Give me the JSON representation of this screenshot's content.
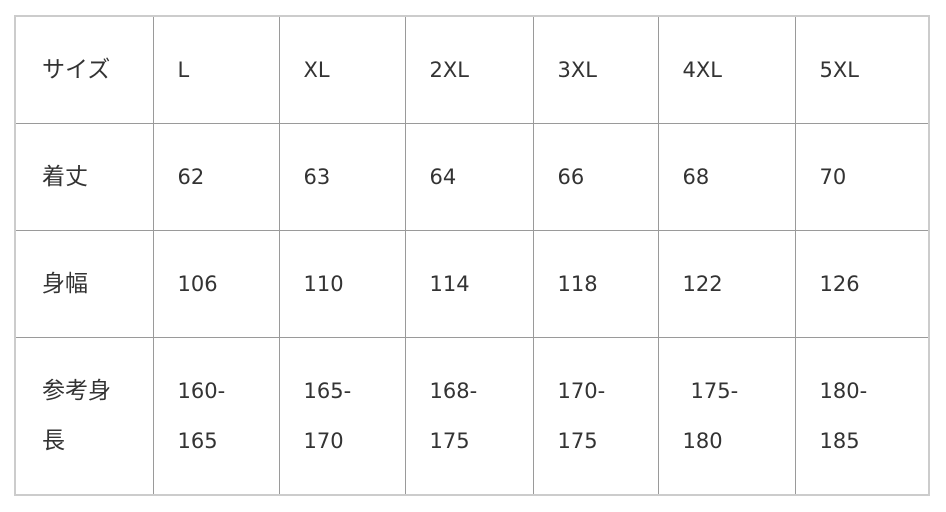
{
  "table": {
    "rows": [
      [
        "サイズ",
        "L",
        "XL",
        "2XL",
        "3XL",
        "4XL",
        "5XL"
      ],
      [
        "着丈",
        "62",
        "63",
        "64",
        "66",
        "68",
        "70"
      ],
      [
        "身幅",
        "106",
        "110",
        "114",
        "118",
        "122",
        "126"
      ],
      [
        "参考身長",
        "160-165",
        "165-170",
        "168-175",
        "170-175",
        "175-180",
        "180-185"
      ]
    ],
    "last_row_lines": [
      [
        "参考身",
        "長"
      ],
      [
        "160-",
        "165"
      ],
      [
        "165-",
        "170"
      ],
      [
        "168-",
        "175"
      ],
      [
        "170-",
        "175"
      ],
      [
        "175-",
        "180"
      ],
      [
        "180-",
        "185"
      ]
    ]
  }
}
